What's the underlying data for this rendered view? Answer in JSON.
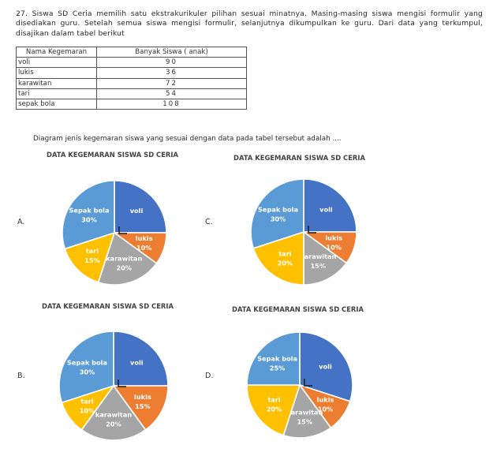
{
  "question": {
    "text": "27. Siswa SD Ceria memilih satu ekstrakurikuler pilihan sesuai minatnya. Masing-masing siswa mengisi formulir yang disediakan guru. Setelah semua siswa mengisi formulir, selanjutnya dikumpulkan ke guru. Dari data yang terkumpul, disajikan dalam tabel berikut"
  },
  "table": {
    "headers": [
      "Nama Kegemaran",
      "Banyak Siswa ( anak)"
    ],
    "rows": [
      [
        "voli",
        "90"
      ],
      [
        "lukis",
        "36"
      ],
      [
        "karawitan",
        "72"
      ],
      [
        "tari",
        "54"
      ],
      [
        "sepak bola",
        "108"
      ]
    ]
  },
  "prompt": "Diagram jenis kegemaran siswa yang sesuai dengan data pada tabel tersebut adalah ....",
  "colors": {
    "voli": "#4472c4",
    "lukis": "#ed7d31",
    "karawitan": "#a5a5a5",
    "tari": "#ffc000",
    "sepak bola": "#5b9bd5"
  },
  "options": [
    {
      "letter": "A.",
      "title": "DATA KEGEMARAN SISWA SD CERIA",
      "chart_data": {
        "type": "pie",
        "title": "DATA KEGEMARAN SISWA SD CERIA",
        "slices": [
          {
            "name": "voli",
            "value": 25,
            "label": "voli"
          },
          {
            "name": "lukis",
            "value": 10,
            "label": "lukis",
            "pct": "10%"
          },
          {
            "name": "karawitan",
            "value": 20,
            "label": "karawitan",
            "pct": "20%"
          },
          {
            "name": "tari",
            "value": 15,
            "label": "tari",
            "pct": "15%"
          },
          {
            "name": "sepak bola",
            "value": 30,
            "label": "Sepak bola",
            "pct": "30%"
          }
        ]
      }
    },
    {
      "letter": "B.",
      "title": "DATA KEGEMARAN SISWA SD CERIA",
      "chart_data": {
        "type": "pie",
        "title": "DATA KEGEMARAN SISWA SD CERIA",
        "slices": [
          {
            "name": "voli",
            "value": 25,
            "label": "voli"
          },
          {
            "name": "lukis",
            "value": 15,
            "label": "lukis",
            "pct": "15%"
          },
          {
            "name": "karawitan",
            "value": 20,
            "label": "karawitan",
            "pct": "20%"
          },
          {
            "name": "tari",
            "value": 10,
            "label": "tari",
            "pct": "10%"
          },
          {
            "name": "sepak bola",
            "value": 30,
            "label": "Sepak bola",
            "pct": "30%"
          }
        ]
      }
    },
    {
      "letter": "C.",
      "title": "DATA KEGEMARAN SISWA SD CERIA",
      "chart_data": {
        "type": "pie",
        "title": "DATA KEGEMARAN SISWA SD CERIA",
        "slices": [
          {
            "name": "voli",
            "value": 25,
            "label": "voli"
          },
          {
            "name": "lukis",
            "value": 10,
            "label": "lukis",
            "pct": "10%"
          },
          {
            "name": "karawitan",
            "value": 15,
            "label": "karawitan",
            "pct": "15%"
          },
          {
            "name": "tari",
            "value": 20,
            "label": "tari",
            "pct": "20%"
          },
          {
            "name": "sepak bola",
            "value": 30,
            "label": "Sepak bola",
            "pct": "30%"
          }
        ]
      }
    },
    {
      "letter": "D.",
      "title": "DATA KEGEMARAN SISWA SD CERIA",
      "chart_data": {
        "type": "pie",
        "title": "DATA KEGEMARAN SISWA SD CERIA",
        "slices": [
          {
            "name": "voli",
            "value": 30,
            "label": "voli"
          },
          {
            "name": "lukis",
            "value": 10,
            "label": "lukis",
            "pct": "10%"
          },
          {
            "name": "karawitan",
            "value": 15,
            "label": "karawitan",
            "pct": "15%"
          },
          {
            "name": "tari",
            "value": 20,
            "label": "tari",
            "pct": "20%"
          },
          {
            "name": "sepak bola",
            "value": 25,
            "label": "Sepak bola",
            "pct": "25%"
          }
        ]
      }
    }
  ]
}
